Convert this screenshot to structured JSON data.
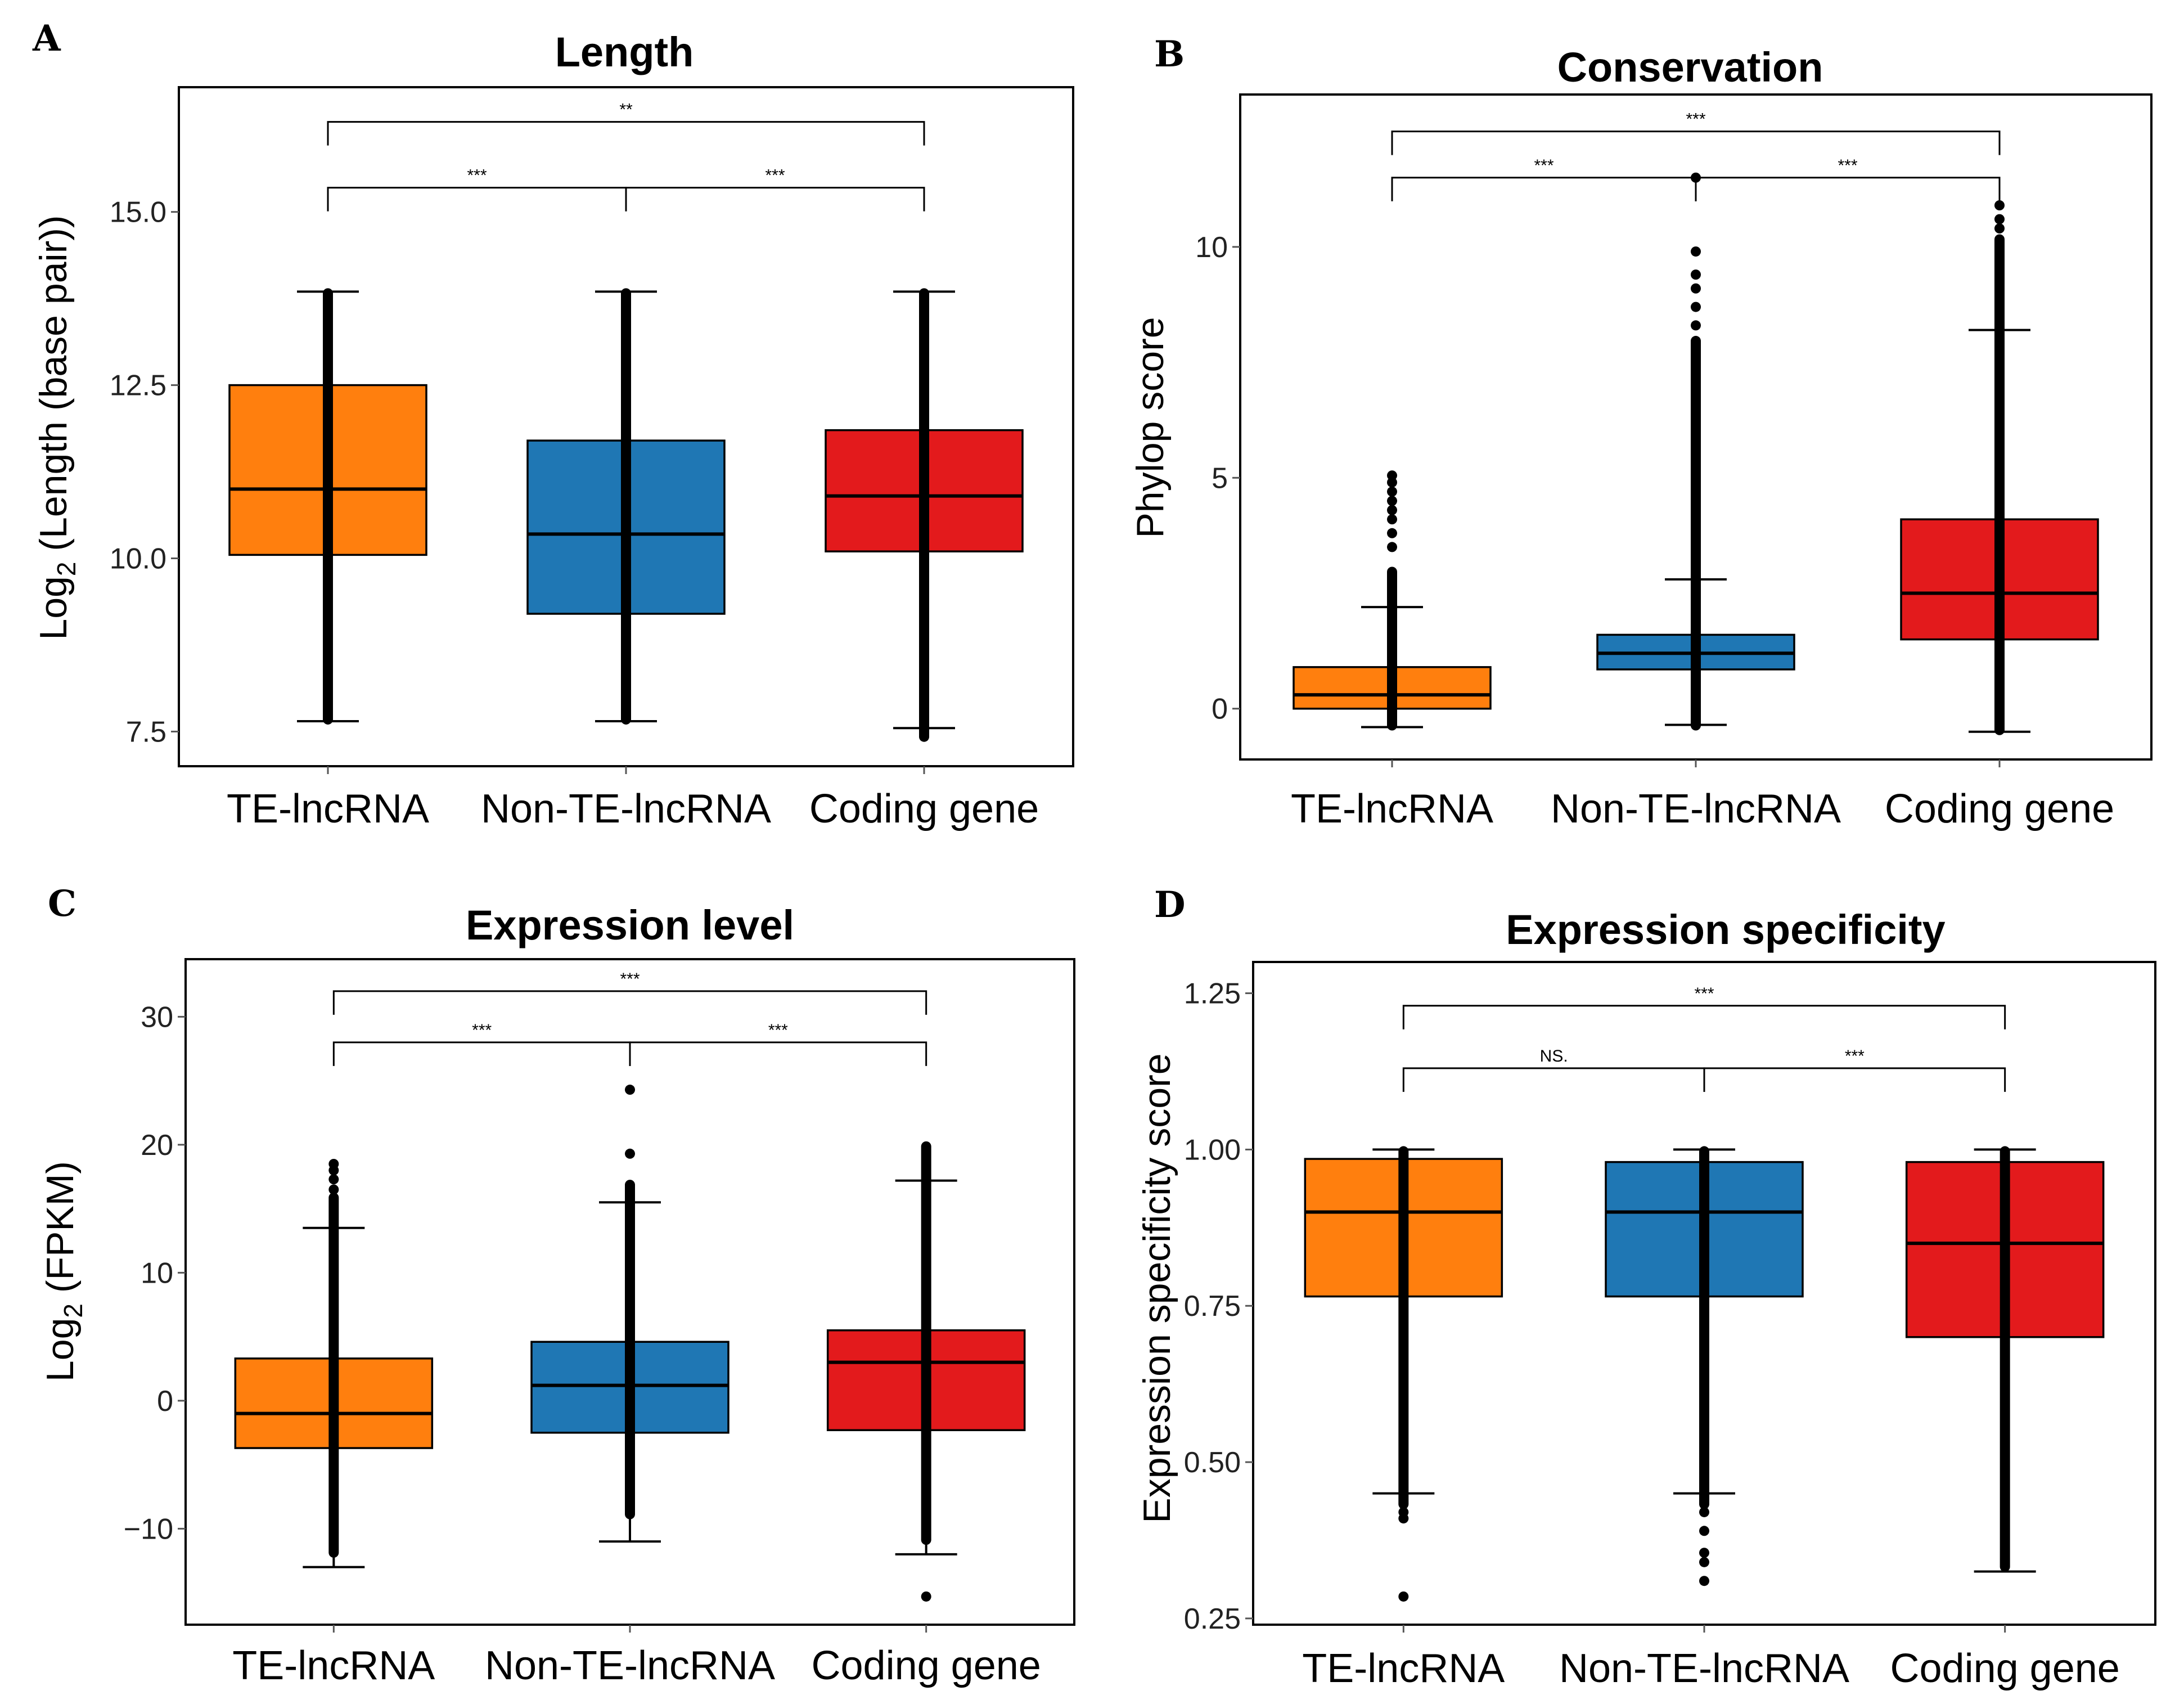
{
  "chart_data": [
    {
      "id": "A",
      "type": "box",
      "letter": "A",
      "title": "Length",
      "ylabel_main": "Log",
      "ylabel_sub": "2",
      "ylabel_rest": " (Length (base pair))",
      "ylim": [
        7.0,
        16.8
      ],
      "yticks": [
        7.5,
        10.0,
        12.5,
        15.0
      ],
      "ytick_labels": [
        "7.5",
        "10.0",
        "12.5",
        "15.0"
      ],
      "categories": [
        "TE-lncRNA",
        "Non-TE-lncRNA",
        "Coding gene"
      ],
      "boxes": [
        {
          "q1": 10.05,
          "median": 11.0,
          "q3": 12.5,
          "wlo": 7.65,
          "whi": 13.85,
          "dense_lo": 7.65,
          "dense_hi": 13.85,
          "outliers": []
        },
        {
          "q1": 9.2,
          "median": 10.35,
          "q3": 11.7,
          "wlo": 7.65,
          "whi": 13.85,
          "dense_lo": 7.65,
          "dense_hi": 13.85,
          "outliers": []
        },
        {
          "q1": 10.1,
          "median": 10.9,
          "q3": 11.85,
          "wlo": 7.55,
          "whi": 13.85,
          "dense_lo": 7.4,
          "dense_hi": 13.85,
          "outliers": []
        }
      ],
      "comparisons": [
        {
          "from": 0,
          "to": 2,
          "y": 16.3,
          "label": "**"
        },
        {
          "from": 0,
          "to": 1,
          "y": 15.35,
          "label": "***"
        },
        {
          "from": 1,
          "to": 2,
          "y": 15.35,
          "label": "***"
        }
      ]
    },
    {
      "id": "B",
      "type": "box",
      "letter": "B",
      "title": "Conservation",
      "ylabel_main": "Phylop score",
      "ylabel_sub": "",
      "ylabel_rest": "",
      "ylim": [
        -1.1,
        13.3
      ],
      "yticks": [
        0,
        5,
        10
      ],
      "ytick_labels": [
        "0",
        "5",
        "10"
      ],
      "categories": [
        "TE-lncRNA",
        "Non-TE-lncRNA",
        "Coding gene"
      ],
      "boxes": [
        {
          "q1": 0.0,
          "median": 0.3,
          "q3": 0.9,
          "wlo": -0.4,
          "whi": 2.2,
          "dense_lo": -0.4,
          "dense_hi": 3.0,
          "outliers": [
            3.5,
            3.8,
            4.1,
            4.3,
            4.5,
            4.7,
            4.9,
            5.05
          ]
        },
        {
          "q1": 0.85,
          "median": 1.2,
          "q3": 1.6,
          "wlo": -0.35,
          "whi": 2.8,
          "dense_lo": -0.4,
          "dense_hi": 8.0,
          "outliers": [
            8.3,
            8.7,
            9.1,
            9.4,
            9.9,
            11.5
          ]
        },
        {
          "q1": 1.5,
          "median": 2.5,
          "q3": 4.1,
          "wlo": -0.5,
          "whi": 8.2,
          "dense_lo": -0.5,
          "dense_hi": 10.2,
          "outliers": [
            10.4,
            10.6,
            10.9
          ]
        }
      ],
      "comparisons": [
        {
          "from": 0,
          "to": 2,
          "y": 12.5,
          "label": "***"
        },
        {
          "from": 0,
          "to": 1,
          "y": 11.5,
          "label": "***"
        },
        {
          "from": 1,
          "to": 2,
          "y": 11.5,
          "label": "***"
        }
      ]
    },
    {
      "id": "C",
      "type": "box",
      "letter": "C",
      "title": "Expression level",
      "ylabel_main": "Log",
      "ylabel_sub": "2",
      "ylabel_rest": " (FPKM)",
      "ylim": [
        -17.5,
        34.5
      ],
      "yticks": [
        -10,
        0,
        10,
        20,
        30
      ],
      "ytick_labels": [
        "−10",
        "0",
        "10",
        "20",
        "30"
      ],
      "categories": [
        "TE-lncRNA",
        "Non-TE-lncRNA",
        "Coding gene"
      ],
      "boxes": [
        {
          "q1": -3.7,
          "median": -1.0,
          "q3": 3.3,
          "wlo": -13.0,
          "whi": 13.5,
          "dense_lo": -12.0,
          "dense_hi": 16.0,
          "outliers": [
            16.5,
            17.3,
            18.0,
            18.5
          ]
        },
        {
          "q1": -2.5,
          "median": 1.2,
          "q3": 4.6,
          "wlo": -11.0,
          "whi": 15.5,
          "dense_lo": -9.0,
          "dense_hi": 17.0,
          "outliers": [
            19.3,
            24.3
          ]
        },
        {
          "q1": -2.3,
          "median": 3.0,
          "q3": 5.5,
          "wlo": -12.0,
          "whi": 17.2,
          "dense_lo": -11.0,
          "dense_hi": 20.0,
          "outliers": [
            -15.3
          ]
        }
      ],
      "comparisons": [
        {
          "from": 0,
          "to": 2,
          "y": 32.0,
          "label": "***"
        },
        {
          "from": 0,
          "to": 1,
          "y": 28.0,
          "label": "***"
        },
        {
          "from": 1,
          "to": 2,
          "y": 28.0,
          "label": "***"
        }
      ]
    },
    {
      "id": "D",
      "type": "box",
      "letter": "D",
      "title": "Expression specificity",
      "ylabel_main": "Expression specificity score",
      "ylabel_sub": "",
      "ylabel_rest": "",
      "ylim": [
        0.24,
        1.3
      ],
      "yticks": [
        0.25,
        0.5,
        0.75,
        1.0,
        1.25
      ],
      "ytick_labels": [
        "0.25",
        "0.50",
        "0.75",
        "1.00",
        "1.25"
      ],
      "categories": [
        "TE-lncRNA",
        "Non-TE-lncRNA",
        "Coding gene"
      ],
      "boxes": [
        {
          "q1": 0.765,
          "median": 0.9,
          "q3": 0.985,
          "wlo": 0.45,
          "whi": 1.0,
          "dense_lo": 0.43,
          "dense_hi": 1.0,
          "outliers": [
            0.42,
            0.41,
            0.285
          ]
        },
        {
          "q1": 0.765,
          "median": 0.9,
          "q3": 0.98,
          "wlo": 0.45,
          "whi": 1.0,
          "dense_lo": 0.43,
          "dense_hi": 1.0,
          "outliers": [
            0.42,
            0.39,
            0.355,
            0.34,
            0.31
          ]
        },
        {
          "q1": 0.7,
          "median": 0.85,
          "q3": 0.98,
          "wlo": 0.325,
          "whi": 1.0,
          "dense_lo": 0.33,
          "dense_hi": 1.0,
          "outliers": []
        }
      ],
      "comparisons": [
        {
          "from": 0,
          "to": 2,
          "y": 1.23,
          "label": "***"
        },
        {
          "from": 0,
          "to": 1,
          "y": 1.13,
          "label": "NS."
        },
        {
          "from": 1,
          "to": 2,
          "y": 1.13,
          "label": "***"
        }
      ]
    }
  ],
  "colors": [
    "#ff7f0e",
    "#1f77b4",
    "#e31a1c"
  ]
}
